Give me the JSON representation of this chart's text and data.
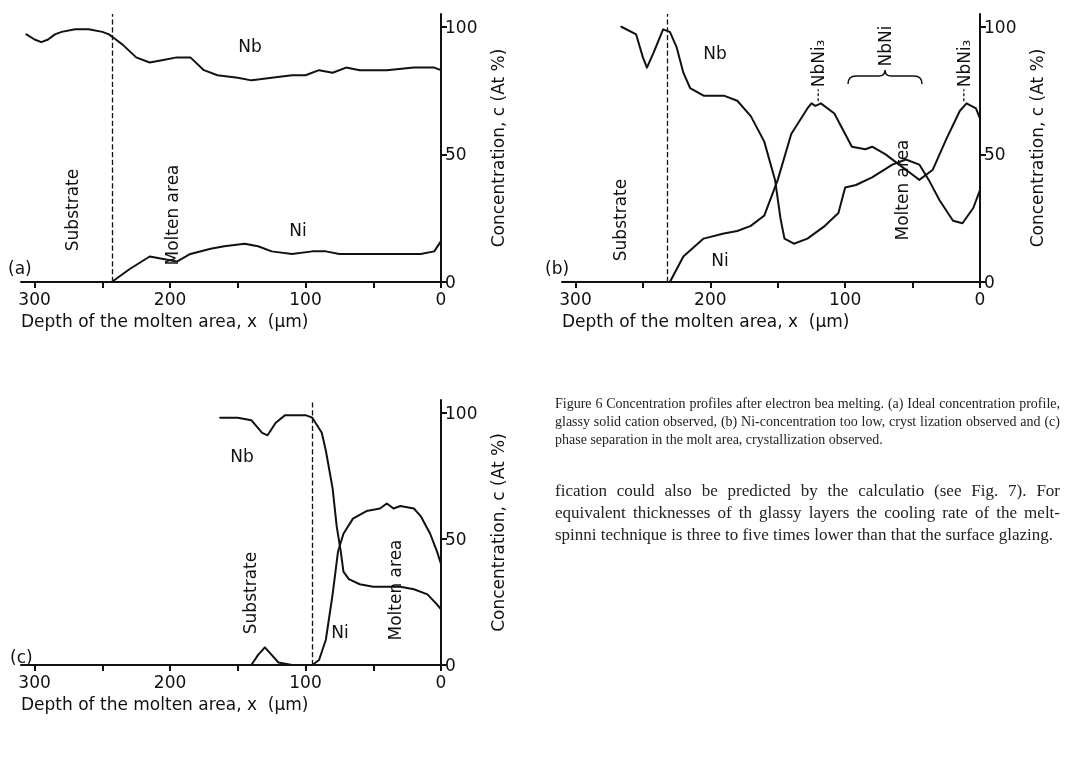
{
  "chart_data": [
    {
      "type": "line",
      "xlabel": "Depth of the molten area, x  (μm)",
      "ylabel": "Concentration, c (At %)",
      "xlim": [
        310,
        0
      ],
      "xticks": [
        300,
        {
          "value": 250,
          "label": null
        },
        200,
        {
          "value": 150,
          "label": null
        },
        100,
        {
          "value": 50,
          "label": null
        },
        0
      ],
      "ylim": [
        0,
        105
      ],
      "yticks": [
        0,
        50,
        100
      ],
      "series": [
        {
          "name": "Nb",
          "color": "#111111",
          "x": [
            306,
            300,
            295,
            290,
            285,
            280,
            270,
            260,
            250,
            245,
            240,
            235,
            225,
            215,
            205,
            195,
            185,
            175,
            165,
            150,
            140,
            125,
            110,
            100,
            90,
            80,
            70,
            60,
            40,
            20,
            5,
            0
          ],
          "values": [
            97,
            95,
            94,
            95,
            97,
            98,
            99,
            99,
            98,
            97,
            95,
            93,
            88,
            86,
            87,
            88,
            88,
            83,
            81,
            80,
            79,
            80,
            81,
            81,
            83,
            82,
            84,
            83,
            83,
            84,
            84,
            83
          ]
        },
        {
          "name": "Ni",
          "color": "#111111",
          "x": [
            243,
            230,
            215,
            205,
            195,
            185,
            170,
            160,
            145,
            135,
            125,
            110,
            95,
            85,
            75,
            60,
            40,
            15,
            5,
            0
          ],
          "values": [
            0,
            5,
            10,
            9,
            8,
            11,
            13,
            14,
            15,
            14,
            12,
            11,
            12,
            12,
            11,
            11,
            11,
            11,
            12,
            16
          ]
        }
      ],
      "ref_lines": [
        {
          "axis": "x",
          "value": 243,
          "line_style": "dashed"
        }
      ],
      "annotations": [
        "(a)",
        "Substrate",
        "Molten area"
      ]
    },
    {
      "type": "line",
      "xlabel": "Depth of the molten area, x  (μm)",
      "ylabel": "Concentration, c (At %)",
      "xlim": [
        310,
        0
      ],
      "xticks": [
        300,
        {
          "value": 250,
          "label": null
        },
        200,
        {
          "value": 150,
          "label": null
        },
        100,
        {
          "value": 50,
          "label": null
        },
        0
      ],
      "ylim": [
        0,
        105
      ],
      "yticks": [
        0,
        50,
        100
      ],
      "series": [
        {
          "name": "Nb",
          "color": "#111111",
          "x": [
            266,
            255,
            250,
            247,
            242,
            235,
            230,
            225,
            220,
            215,
            205,
            190,
            180,
            170,
            160,
            152,
            148,
            145,
            138,
            128,
            115,
            105,
            100,
            92,
            80,
            65,
            55,
            45,
            38,
            30,
            20,
            13,
            5,
            0
          ],
          "values": [
            100,
            97,
            88,
            84,
            90,
            99,
            98,
            92,
            82,
            76,
            73,
            73,
            71,
            65,
            55,
            40,
            25,
            17,
            15,
            17,
            22,
            27,
            37,
            38,
            41,
            46,
            48,
            46,
            40,
            32,
            24,
            23,
            29,
            36
          ]
        },
        {
          "name": "Ni",
          "color": "#111111",
          "x": [
            230,
            220,
            205,
            190,
            180,
            170,
            160,
            150,
            140,
            128,
            125,
            122,
            118,
            108,
            100,
            95,
            85,
            80,
            70,
            60,
            50,
            45,
            35,
            25,
            15,
            10,
            3,
            0
          ],
          "values": [
            0,
            10,
            17,
            19,
            20,
            22,
            26,
            40,
            58,
            68,
            70,
            69,
            70,
            66,
            58,
            53,
            52,
            53,
            50,
            46,
            42,
            40,
            44,
            56,
            67,
            70,
            68,
            64
          ]
        }
      ],
      "ref_lines": [
        {
          "axis": "x",
          "value": 232,
          "line_style": "dashed"
        }
      ],
      "annotations": [
        "(b)",
        "Substrate",
        "Molten area",
        {
          "text": "NbNi₃",
          "x": 120,
          "y": 70
        },
        "NbNi",
        {
          "text": "NbNi₃",
          "x": 12,
          "y": 70
        }
      ]
    },
    {
      "type": "line",
      "xlabel": "Depth of the molten area, x  (μm)",
      "ylabel": "Concentration, c (At %)",
      "xlim": [
        310,
        0
      ],
      "xticks": [
        300,
        {
          "value": 250,
          "label": null
        },
        200,
        {
          "value": 150,
          "label": null
        },
        100,
        {
          "value": 50,
          "label": null
        },
        0
      ],
      "ylim": [
        0,
        105
      ],
      "yticks": [
        0,
        50,
        100
      ],
      "series": [
        {
          "name": "Nb",
          "color": "#111111",
          "x": [
            163,
            150,
            140,
            132,
            128,
            122,
            115,
            100,
            95,
            88,
            85,
            80,
            77,
            74,
            72,
            68,
            60,
            50,
            40,
            30,
            20,
            10,
            3,
            0
          ],
          "values": [
            98,
            98,
            97,
            92,
            91,
            96,
            99,
            99,
            98,
            92,
            85,
            70,
            55,
            45,
            37,
            34,
            32,
            31,
            31,
            31,
            30,
            28,
            24,
            22
          ]
        },
        {
          "name": "Ni",
          "color": "#111111",
          "x": [
            306,
            140,
            135,
            130,
            125,
            120,
            110,
            95,
            90,
            85,
            80,
            76,
            72,
            65,
            55,
            45,
            40,
            35,
            30,
            20,
            15,
            8,
            3,
            0
          ],
          "values": [
            0,
            0,
            4,
            7,
            4,
            1,
            0,
            0,
            2,
            10,
            28,
            45,
            52,
            58,
            61,
            62,
            64,
            62,
            63,
            62,
            59,
            52,
            45,
            40
          ]
        }
      ],
      "ref_lines": [
        {
          "axis": "x",
          "value": 95,
          "line_style": "dashed"
        }
      ],
      "annotations": [
        "(c)",
        "Substrate",
        "Molten area"
      ]
    },
    {
      "type": "other",
      "annotations": [
        "Figure 6 Concentration profiles after electron bea melting. (a) Ideal concentration profile, glassy solid cation observed, (b) Ni-concentration too low, cryst lization observed and (c) phase separation in the molt area, crystallization observed.",
        "fication could also be predicted by the calculatio (see Fig. 7). For equivalent thicknesses of th glassy layers the cooling rate of the melt-spinni technique is three to five times lower than that the surface glazing."
      ]
    }
  ]
}
